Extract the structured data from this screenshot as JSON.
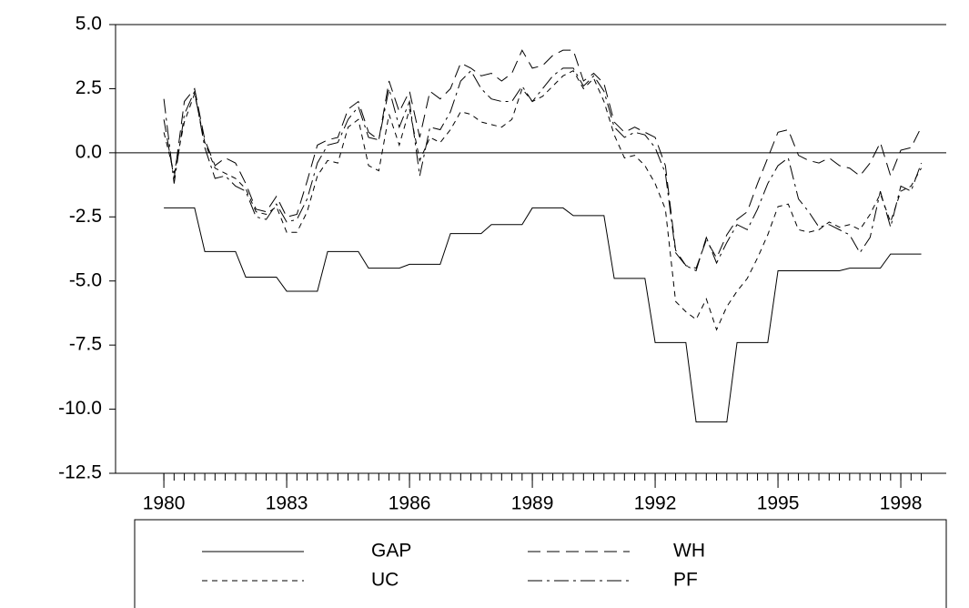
{
  "chart_data": {
    "type": "line",
    "x": [
      1980,
      1980.25,
      1980.5,
      1980.75,
      1981,
      1981.25,
      1981.5,
      1981.75,
      1982,
      1982.25,
      1982.5,
      1982.75,
      1983,
      1983.25,
      1983.5,
      1983.75,
      1984,
      1984.25,
      1984.5,
      1984.75,
      1985,
      1985.25,
      1985.5,
      1985.75,
      1986,
      1986.25,
      1986.5,
      1986.75,
      1987,
      1987.25,
      1987.5,
      1987.75,
      1988,
      1988.25,
      1988.5,
      1988.75,
      1989,
      1989.25,
      1989.5,
      1989.75,
      1990,
      1990.25,
      1990.5,
      1990.75,
      1991,
      1991.25,
      1991.5,
      1991.75,
      1992,
      1992.25,
      1992.5,
      1992.75,
      1993,
      1993.25,
      1993.5,
      1993.75,
      1994,
      1994.25,
      1994.5,
      1994.75,
      1995,
      1995.25,
      1995.5,
      1995.75,
      1996,
      1996.25,
      1996.5,
      1996.75,
      1997,
      1997.25,
      1997.5,
      1997.75,
      1998,
      1998.25,
      1998.5
    ],
    "series": [
      {
        "name": "GAP",
        "color": "#000000",
        "dash": "solid",
        "values": [
          -2.15,
          -2.15,
          -2.15,
          -2.15,
          -3.85,
          -3.85,
          -3.85,
          -3.85,
          -4.85,
          -4.85,
          -4.85,
          -4.85,
          -5.4,
          -5.4,
          -5.4,
          -5.4,
          -3.85,
          -3.85,
          -3.85,
          -3.85,
          -4.5,
          -4.5,
          -4.5,
          -4.5,
          -4.35,
          -4.35,
          -4.35,
          -4.35,
          -3.15,
          -3.15,
          -3.15,
          -3.15,
          -2.8,
          -2.8,
          -2.8,
          -2.8,
          -2.15,
          -2.15,
          -2.15,
          -2.15,
          -2.45,
          -2.45,
          -2.45,
          -2.45,
          -4.9,
          -4.9,
          -4.9,
          -4.9,
          -7.4,
          -7.4,
          -7.4,
          -7.4,
          -10.5,
          -10.5,
          -10.5,
          -10.5,
          -7.4,
          -7.4,
          -7.4,
          -7.4,
          -4.6,
          -4.6,
          -4.6,
          -4.6,
          -4.6,
          -4.6,
          -4.6,
          -4.5,
          -4.5,
          -4.5,
          -4.5,
          -3.95,
          -3.95,
          -3.95,
          -3.95
        ]
      },
      {
        "name": "WH",
        "color": "#000000",
        "dash": "long",
        "values": [
          1.3,
          -1.0,
          2.0,
          2.5,
          0.5,
          -0.5,
          -0.2,
          -0.4,
          -1.2,
          -2.2,
          -2.3,
          -1.7,
          -2.5,
          -2.4,
          -1.1,
          0.3,
          0.5,
          0.6,
          1.7,
          2.0,
          0.8,
          0.5,
          2.8,
          1.6,
          2.4,
          0.6,
          2.4,
          2.1,
          2.5,
          3.5,
          3.3,
          3.0,
          3.1,
          2.8,
          3.1,
          4.0,
          3.3,
          3.4,
          3.8,
          4.0,
          4.0,
          2.8,
          3.1,
          2.7,
          1.2,
          0.8,
          1.0,
          0.8,
          0.6,
          -0.5,
          -3.8,
          -4.4,
          -4.5,
          -3.4,
          -4.1,
          -3.2,
          -2.6,
          -2.3,
          -1.2,
          -0.2,
          0.8,
          0.9,
          -0.1,
          -0.3,
          -0.4,
          -0.2,
          -0.5,
          -0.6,
          -0.9,
          -0.4,
          0.4,
          -0.9,
          0.1,
          0.2,
          1.0
        ]
      },
      {
        "name": "UC",
        "color": "#000000",
        "dash": "short",
        "values": [
          0.8,
          -0.8,
          1.2,
          2.3,
          0.4,
          -0.6,
          -0.8,
          -1.0,
          -1.4,
          -2.3,
          -2.4,
          -2.1,
          -3.1,
          -3.1,
          -2.3,
          -0.9,
          -0.3,
          -0.4,
          1.0,
          1.3,
          -0.5,
          -0.7,
          1.5,
          0.3,
          1.7,
          -0.3,
          0.6,
          0.4,
          0.9,
          1.6,
          1.5,
          1.2,
          1.1,
          1.0,
          1.3,
          2.5,
          2.0,
          2.2,
          2.6,
          3.0,
          3.2,
          2.5,
          2.9,
          2.0,
          0.7,
          -0.2,
          -0.1,
          -0.5,
          -1.2,
          -2.2,
          -5.8,
          -6.2,
          -6.5,
          -5.7,
          -6.9,
          -6.0,
          -5.4,
          -4.9,
          -4.1,
          -3.2,
          -2.1,
          -2.0,
          -3.0,
          -3.1,
          -3.0,
          -2.7,
          -2.9,
          -2.8,
          -3.0,
          -2.4,
          -1.6,
          -2.7,
          -1.5,
          -1.3,
          -0.6
        ]
      },
      {
        "name": "PF",
        "color": "#000000",
        "dash": "dash-dot",
        "values": [
          2.1,
          -1.2,
          1.5,
          2.4,
          0.2,
          -1.0,
          -0.9,
          -1.3,
          -1.5,
          -2.5,
          -2.6,
          -2.0,
          -2.7,
          -2.6,
          -1.8,
          -0.4,
          0.3,
          0.4,
          1.3,
          1.8,
          0.6,
          0.5,
          2.5,
          1.0,
          2.0,
          -0.9,
          1.0,
          0.9,
          1.6,
          2.8,
          3.2,
          2.5,
          2.1,
          2.0,
          2.0,
          2.6,
          2.0,
          2.5,
          3.0,
          3.3,
          3.3,
          2.6,
          3.0,
          2.4,
          1.0,
          0.6,
          0.8,
          0.7,
          0.2,
          -0.8,
          -3.9,
          -4.4,
          -4.6,
          -3.3,
          -4.3,
          -3.5,
          -2.8,
          -3.0,
          -2.2,
          -1.2,
          -0.5,
          -0.2,
          -1.8,
          -2.3,
          -2.9,
          -2.8,
          -3.0,
          -3.2,
          -3.9,
          -3.3,
          -1.5,
          -2.9,
          -1.3,
          -1.5,
          -0.4
        ]
      }
    ],
    "xlim": [
      1978.82,
      1999.11
    ],
    "xticks": [
      1980,
      1983,
      1986,
      1989,
      1992,
      1995,
      1998
    ],
    "ylim": [
      -12.5,
      5
    ],
    "yticks": [
      {
        "value": 5,
        "label": "5.0"
      },
      {
        "value": 2.5,
        "label": "2.5"
      },
      {
        "value": 0,
        "label": "0.0"
      },
      {
        "value": -2.5,
        "label": "-2.5"
      },
      {
        "value": -5,
        "label": "-5.0"
      },
      {
        "value": -7.5,
        "label": "-7.5"
      },
      {
        "value": -10,
        "label": "-10.0"
      },
      {
        "value": -12.5,
        "label": "-12.5"
      }
    ],
    "zero_line": true,
    "legend": "bottom"
  }
}
